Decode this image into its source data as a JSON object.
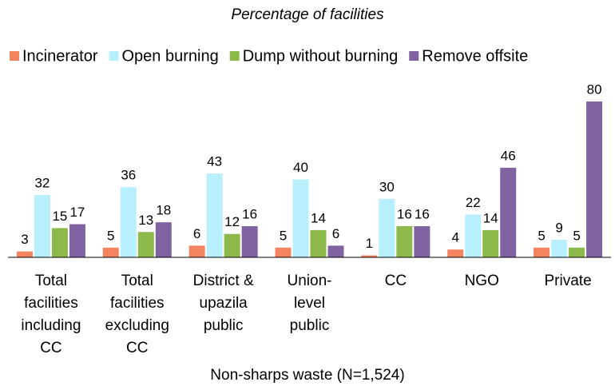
{
  "chart_data": {
    "type": "bar",
    "title": "Percentage of facilities",
    "x_label": "Non-sharps waste (N=1,524)",
    "categories": [
      "Total\nfacilities\nincluding\nCC",
      "Total\nfacilities\nexcluding\nCC",
      "District &\nupazila\npublic",
      "Union-\nlevel\npublic",
      "CC",
      "NGO",
      "Private"
    ],
    "series": [
      {
        "name": "Incinerator",
        "color": "#f4845f",
        "values": [
          3,
          5,
          6,
          5,
          1,
          4,
          5
        ]
      },
      {
        "name": "Open burning",
        "color": "#b7f0fc",
        "values": [
          32,
          36,
          43,
          40,
          30,
          22,
          9
        ]
      },
      {
        "name": "Dump without burning",
        "color": "#8db84a",
        "values": [
          15,
          13,
          12,
          14,
          16,
          14,
          5
        ]
      },
      {
        "name": "Remove offsite",
        "color": "#8064a2",
        "values": [
          17,
          18,
          16,
          6,
          16,
          46,
          80
        ]
      }
    ],
    "legend": "top"
  }
}
